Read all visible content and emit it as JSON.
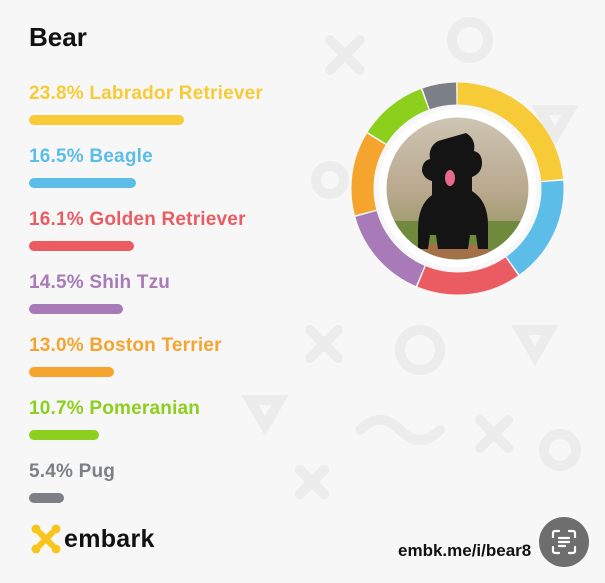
{
  "dog_name": "Bear",
  "breeds": [
    {
      "percent_label": "23.8%",
      "name": "Labrador Retriever",
      "value": 23.8,
      "color": "#f7cb38"
    },
    {
      "percent_label": "16.5%",
      "name": "Beagle",
      "value": 16.5,
      "color": "#5bbde8"
    },
    {
      "percent_label": "16.1%",
      "name": "Golden Retriever",
      "value": 16.1,
      "color": "#ea5b62"
    },
    {
      "percent_label": "14.5%",
      "name": "Shih Tzu",
      "value": 14.5,
      "color": "#a87bb8"
    },
    {
      "percent_label": "13.0%",
      "name": "Boston Terrier",
      "value": 13.0,
      "color": "#f5a42d"
    },
    {
      "percent_label": "10.7%",
      "name": "Pomeranian",
      "value": 10.7,
      "color": "#8ccf1d"
    },
    {
      "percent_label": "5.4%",
      "name": "Pug",
      "value": 5.4,
      "color": "#7c7f85"
    }
  ],
  "brand": {
    "name": "embark",
    "logo_color": "#f7c51e"
  },
  "share_url": "embk.me/i/bear8",
  "icons": {
    "scan": "scan-text-icon",
    "logo": "embark-logo-icon",
    "photo": "dog-photo"
  }
}
